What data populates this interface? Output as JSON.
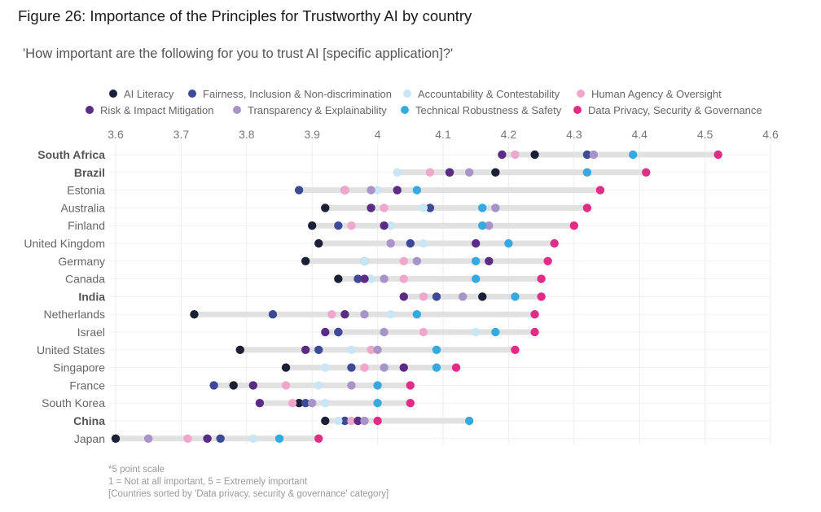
{
  "header": {
    "title": "Figure 26: Importance of the Principles for Trustworthy AI by country",
    "subtitle": "'How important are the following for you to trust AI [specific application]?'"
  },
  "footnotes": [
    "*5 point scale",
    "1 = Not at all important, 5 = Extremely important",
    "[Countries sorted by 'Data privacy, security & governance' category]"
  ],
  "chart_data": {
    "type": "dot-range",
    "xlim": [
      3.6,
      4.6
    ],
    "x_ticks": [
      "3.6",
      "3.7",
      "3.8",
      "3.9",
      "4",
      "4.1",
      "4.2",
      "4.3",
      "4.4",
      "4.5",
      "4.6"
    ],
    "legend_position": "top",
    "grid": true,
    "categories": [
      "South Africa",
      "Brazil",
      "Estonia",
      "Australia",
      "Finland",
      "United Kingdom",
      "Germany",
      "Canada",
      "India",
      "Netherlands",
      "Israel",
      "United States",
      "Singapore",
      "France",
      "South Korea",
      "China",
      "Japan"
    ],
    "bold_categories": [
      "South Africa",
      "Brazil",
      "India",
      "China"
    ],
    "series": [
      {
        "name": "AI Literacy",
        "color": "#1b2036",
        "values": [
          4.24,
          4.18,
          3.95,
          3.92,
          3.9,
          3.91,
          3.89,
          3.94,
          4.16,
          3.72,
          3.94,
          3.79,
          3.86,
          3.78,
          3.88,
          3.92,
          3.6
        ]
      },
      {
        "name": "Fairness, Inclusion & Non-discrimination",
        "color": "#3d4a98",
        "values": [
          4.32,
          4.11,
          3.88,
          4.08,
          3.94,
          4.05,
          3.98,
          3.97,
          4.09,
          3.84,
          3.94,
          3.91,
          3.96,
          3.75,
          3.89,
          3.95,
          3.76
        ]
      },
      {
        "name": "Accountability & Contestability",
        "color": "#c9e6f7",
        "values": [
          4.21,
          4.03,
          4.0,
          4.07,
          4.02,
          4.07,
          3.98,
          3.99,
          4.07,
          4.02,
          4.15,
          3.96,
          3.92,
          3.91,
          3.92,
          3.94,
          3.81
        ]
      },
      {
        "name": "Human Agency & Oversight",
        "color": "#f1a7cb",
        "values": [
          4.21,
          4.08,
          3.95,
          4.01,
          3.96,
          4.02,
          4.04,
          4.04,
          4.07,
          3.93,
          4.07,
          3.99,
          3.98,
          3.86,
          3.87,
          3.96,
          3.71
        ]
      },
      {
        "name": "Risk & Impact Mitigation",
        "color": "#5b2b86",
        "values": [
          4.19,
          4.11,
          4.03,
          3.99,
          4.01,
          4.15,
          4.17,
          3.98,
          4.04,
          3.95,
          3.92,
          3.89,
          4.04,
          3.81,
          3.82,
          3.97,
          3.74
        ]
      },
      {
        "name": "Transparency & Explainability",
        "color": "#a894c8",
        "values": [
          4.33,
          4.14,
          3.99,
          4.18,
          4.17,
          4.02,
          4.06,
          4.01,
          4.13,
          3.98,
          4.01,
          4.0,
          4.01,
          3.96,
          3.9,
          3.98,
          3.65
        ]
      },
      {
        "name": "Technical Robustness & Safety",
        "color": "#36a9e1",
        "values": [
          4.39,
          4.32,
          4.06,
          4.16,
          4.16,
          4.2,
          4.15,
          4.15,
          4.21,
          4.06,
          4.18,
          4.09,
          4.09,
          4.0,
          4.0,
          4.14,
          3.85
        ]
      },
      {
        "name": "Data Privacy, Security & Governance",
        "color": "#e22d88",
        "values": [
          4.52,
          4.41,
          4.34,
          4.32,
          4.3,
          4.27,
          4.26,
          4.25,
          4.25,
          4.24,
          4.24,
          4.21,
          4.12,
          4.05,
          4.05,
          4.0,
          3.91
        ]
      }
    ]
  }
}
